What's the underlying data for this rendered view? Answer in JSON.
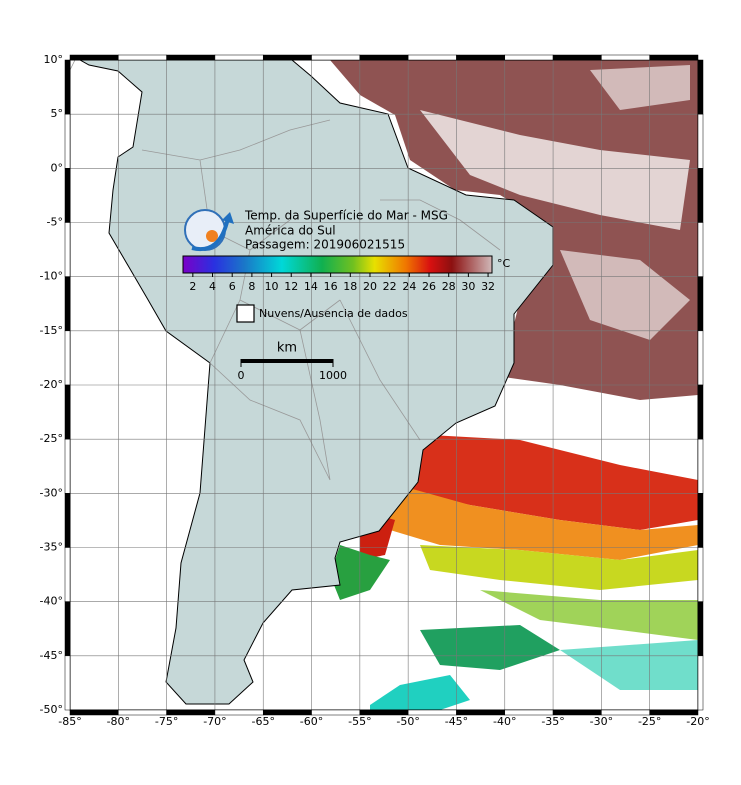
{
  "title_lines": [
    "Temp. da Superfície do Mar - MSG",
    "América do Sul",
    "Passagem: 201906021515"
  ],
  "colorbar": {
    "unit": "°C",
    "lim": [
      1,
      32.4
    ],
    "ticks": [
      2,
      4,
      6,
      8,
      10,
      12,
      14,
      16,
      18,
      20,
      22,
      24,
      26,
      28,
      30,
      32
    ]
  },
  "legend": "Nuvens/Ausencia de dados",
  "scale_bar": {
    "unit": "km",
    "lim": [
      0,
      1000
    ],
    "ticks": [
      0,
      1000
    ]
  },
  "xaxis": {
    "lim": [
      -85,
      -20
    ],
    "ticks": [
      {
        "value": -85,
        "label": "-85°"
      },
      {
        "value": -80,
        "label": "-80°"
      },
      {
        "value": -75,
        "label": "-75°"
      },
      {
        "value": -70,
        "label": "-70°"
      },
      {
        "value": -65,
        "label": "-65°"
      },
      {
        "value": -60,
        "label": "-60°"
      },
      {
        "value": -55,
        "label": "-55°"
      },
      {
        "value": -50,
        "label": "-50°"
      },
      {
        "value": -45,
        "label": "-45°"
      },
      {
        "value": -40,
        "label": "-40°"
      },
      {
        "value": -35,
        "label": "-35°"
      },
      {
        "value": -30,
        "label": "-30°"
      },
      {
        "value": -25,
        "label": "-25°"
      },
      {
        "value": -20,
        "label": "-20°"
      }
    ]
  },
  "yaxis": {
    "lim": [
      -50,
      10
    ],
    "ticks": [
      {
        "value": 10,
        "label": "10°"
      },
      {
        "value": 5,
        "label": "5°"
      },
      {
        "value": 0,
        "label": "0°"
      },
      {
        "value": -5,
        "label": "-5°"
      },
      {
        "value": -10,
        "label": "-10°"
      },
      {
        "value": -15,
        "label": "-15°"
      },
      {
        "value": -20,
        "label": "-20°"
      },
      {
        "value": -25,
        "label": "-25°"
      },
      {
        "value": -30,
        "label": "-30°"
      },
      {
        "value": -35,
        "label": "-35°"
      },
      {
        "value": -40,
        "label": "-40°"
      },
      {
        "value": -45,
        "label": "-45°"
      },
      {
        "value": -50,
        "label": "-50°"
      }
    ]
  }
}
